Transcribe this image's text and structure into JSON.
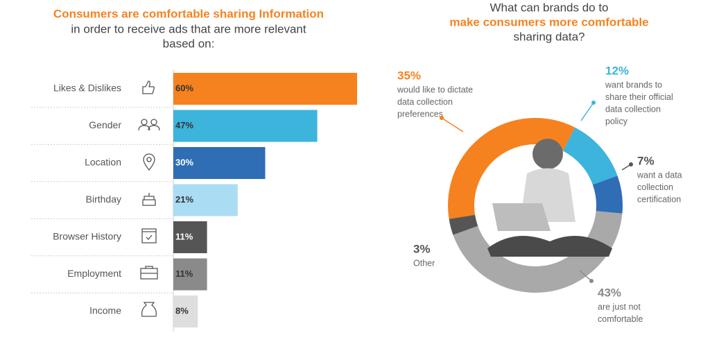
{
  "chart_data": [
    {
      "type": "barh",
      "title": "Consumers are comfortable sharing Information",
      "subtitle": [
        "in order to receive ads that are more relevant",
        "based on:"
      ],
      "categories": [
        "Likes & Dislikes",
        "Gender",
        "Location",
        "Birthday",
        "Browser History",
        "Employment",
        "Income"
      ],
      "values": [
        60,
        47,
        30,
        21,
        11,
        11,
        8
      ],
      "value_labels": [
        "60%",
        "47%",
        "30%",
        "21%",
        "11%",
        "11%",
        "8%"
      ],
      "colors": [
        "#f5821f",
        "#3db4dc",
        "#2f6db5",
        "#aadcf4",
        "#555555",
        "#8a8a8a",
        "#dedede"
      ]
    },
    {
      "type": "donut",
      "subtitle_top": "What can brands do to",
      "title": "make consumers more comfortable",
      "subtitle_bottom": "sharing data?",
      "slices": [
        {
          "value": 35,
          "value_label": "35%",
          "color": "#f5821f",
          "label": [
            "would like to dictate",
            "data collection",
            "preferences"
          ]
        },
        {
          "value": 12,
          "value_label": "12%",
          "color": "#3db4dc",
          "label": [
            "want brands to",
            "share their official",
            "data collection",
            "policy"
          ]
        },
        {
          "value": 7,
          "value_label": "7%",
          "color": "#2f6db5",
          "label": [
            "want a data",
            "collection",
            "certification"
          ]
        },
        {
          "value": 43,
          "value_label": "43%",
          "color": "#a9a9a9",
          "label": [
            "are just not",
            "comfortable"
          ]
        },
        {
          "value": 3,
          "value_label": "3%",
          "color": "#555555",
          "label": [
            "Other"
          ]
        }
      ]
    }
  ]
}
